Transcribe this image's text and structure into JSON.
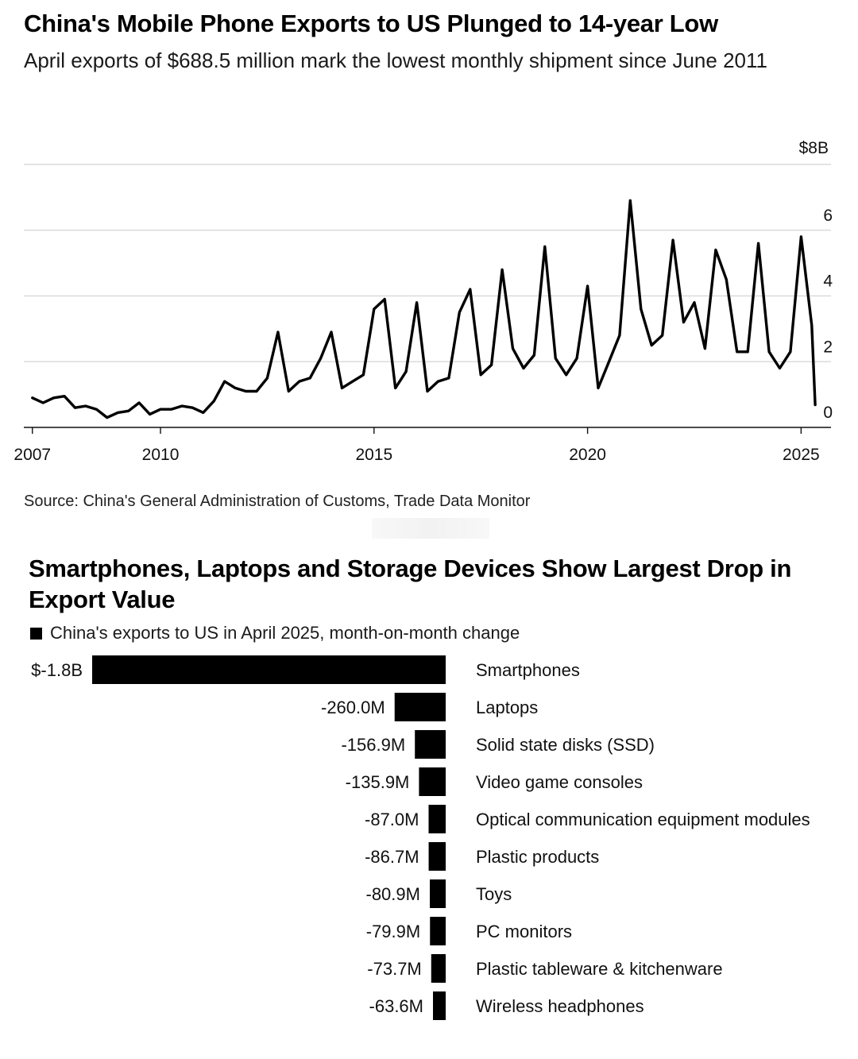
{
  "chart_data": [
    {
      "type": "line",
      "title": "China's Mobile Phone Exports to US Plunged to 14-year Low",
      "subtitle": "April exports of $688.5 million mark the lowest monthly shipment since June 2011",
      "source": "Source: China's General Administration of Customs, Trade Data Monitor",
      "xlabel": "",
      "ylabel": "",
      "xlim": [
        2006.8,
        2025.7
      ],
      "ylim": [
        0,
        8
      ],
      "x_ticks": [
        "2007",
        "2010",
        "2015",
        "2020",
        "2025"
      ],
      "x_tick_values": [
        2007,
        2010,
        2015,
        2020,
        2025
      ],
      "y_ticks": [
        "0",
        "2",
        "4",
        "6",
        "$8B"
      ],
      "y_tick_values": [
        0,
        2,
        4,
        6,
        8
      ],
      "grid": true,
      "series": [
        {
          "name": "China mobile phone exports to US ($B)",
          "x": [
            2007.0,
            2007.25,
            2007.5,
            2007.75,
            2008.0,
            2008.25,
            2008.5,
            2008.75,
            2009.0,
            2009.25,
            2009.5,
            2009.75,
            2010.0,
            2010.25,
            2010.5,
            2010.75,
            2011.0,
            2011.25,
            2011.5,
            2011.75,
            2012.0,
            2012.25,
            2012.5,
            2012.75,
            2013.0,
            2013.25,
            2013.5,
            2013.75,
            2014.0,
            2014.25,
            2014.5,
            2014.75,
            2015.0,
            2015.25,
            2015.5,
            2015.75,
            2016.0,
            2016.25,
            2016.5,
            2016.75,
            2017.0,
            2017.25,
            2017.5,
            2017.75,
            2018.0,
            2018.25,
            2018.5,
            2018.75,
            2019.0,
            2019.25,
            2019.5,
            2019.75,
            2020.0,
            2020.25,
            2020.5,
            2020.75,
            2021.0,
            2021.25,
            2021.5,
            2021.75,
            2022.0,
            2022.25,
            2022.5,
            2022.75,
            2023.0,
            2023.25,
            2023.5,
            2023.75,
            2024.0,
            2024.25,
            2024.5,
            2024.75,
            2025.0,
            2025.25,
            2025.33
          ],
          "values": [
            0.9,
            0.75,
            0.9,
            0.95,
            0.6,
            0.65,
            0.55,
            0.3,
            0.45,
            0.5,
            0.75,
            0.4,
            0.55,
            0.55,
            0.65,
            0.6,
            0.45,
            0.8,
            1.4,
            1.2,
            1.1,
            1.1,
            1.5,
            2.9,
            1.1,
            1.4,
            1.5,
            2.1,
            2.9,
            1.2,
            1.4,
            1.6,
            3.6,
            3.9,
            1.2,
            1.7,
            3.8,
            1.1,
            1.4,
            1.5,
            3.5,
            4.2,
            1.6,
            1.9,
            4.8,
            2.4,
            1.8,
            2.2,
            5.5,
            2.1,
            1.6,
            2.1,
            4.3,
            1.2,
            2.0,
            2.8,
            6.9,
            3.6,
            2.5,
            2.8,
            5.7,
            3.2,
            3.8,
            2.4,
            5.4,
            4.5,
            2.3,
            2.3,
            5.6,
            2.3,
            1.8,
            2.3,
            5.8,
            3.1,
            0.69
          ]
        }
      ]
    },
    {
      "type": "bar",
      "orientation": "horizontal",
      "title": "Smartphones, Laptops and Storage Devices Show Largest Drop in Export Value",
      "legend": "China's exports to US in April 2025, month-on-month change",
      "unit": "million USD",
      "xlim": [
        -1800,
        0
      ],
      "categories": [
        "Smartphones",
        "Laptops",
        "Solid state disks (SSD)",
        "Video game consoles",
        "Optical communication equipment modules",
        "Plastic products",
        "Toys",
        "PC monitors",
        "Plastic tableware & kitchenware",
        "Wireless headphones"
      ],
      "values": [
        -1800,
        -260.0,
        -156.9,
        -135.9,
        -87.0,
        -86.7,
        -80.9,
        -79.9,
        -73.7,
        -63.6
      ],
      "labels": [
        "$-1.8B",
        "-260.0M",
        "-156.9M",
        "-135.9M",
        "-87.0M",
        "-86.7M",
        "-80.9M",
        "-79.9M",
        "-73.7M",
        "-63.6M"
      ]
    }
  ]
}
